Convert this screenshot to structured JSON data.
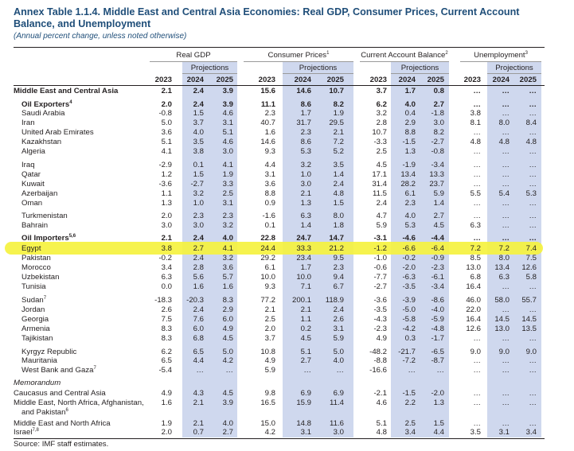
{
  "title": "Annex Table 1.1.4. Middle East and Central Asia Economies: Real GDP, Consumer Prices, Current Account Balance, and Unemployment",
  "subtitle": "(Annual percent change, unless noted otherwise)",
  "groups": [
    {
      "label": "Real GDP",
      "sup": ""
    },
    {
      "label": "Consumer Prices",
      "sup": "1"
    },
    {
      "label": "Current Account Balance",
      "sup": "2"
    },
    {
      "label": "Unemployment",
      "sup": "3"
    }
  ],
  "projections_label": "Projections",
  "years": [
    "2023",
    "2024",
    "2025"
  ],
  "source": "Source: IMF staff estimates.",
  "highlight_color": "#f5f23f",
  "rows": [
    {
      "name": "Middle East and Central Asia",
      "sup": "",
      "style": "bold",
      "indent": 0,
      "v": [
        "2.1",
        "2.4",
        "3.9",
        "15.6",
        "14.6",
        "10.7",
        "3.7",
        "1.7",
        "0.8",
        "…",
        "…",
        "…"
      ]
    },
    {
      "name": "Oil Exporters",
      "sup": "4",
      "style": "bold",
      "indent": 1,
      "v": [
        "2.0",
        "2.4",
        "3.9",
        "11.1",
        "8.6",
        "8.2",
        "6.2",
        "4.0",
        "2.7",
        "…",
        "…",
        "…"
      ]
    },
    {
      "name": "Saudi Arabia",
      "sup": "",
      "style": "",
      "indent": 2,
      "v": [
        "-0.8",
        "1.5",
        "4.6",
        "2.3",
        "1.7",
        "1.9",
        "3.2",
        "0.4",
        "-1.8",
        "3.8",
        "…",
        "…"
      ]
    },
    {
      "name": "Iran",
      "sup": "",
      "style": "",
      "indent": 2,
      "v": [
        "5.0",
        "3.7",
        "3.1",
        "40.7",
        "31.7",
        "29.5",
        "2.8",
        "2.9",
        "3.0",
        "8.1",
        "8.0",
        "8.4"
      ]
    },
    {
      "name": "United Arab Emirates",
      "sup": "",
      "style": "",
      "indent": 2,
      "v": [
        "3.6",
        "4.0",
        "5.1",
        "1.6",
        "2.3",
        "2.1",
        "10.7",
        "8.8",
        "8.2",
        "…",
        "…",
        "…"
      ]
    },
    {
      "name": "Kazakhstan",
      "sup": "",
      "style": "",
      "indent": 2,
      "v": [
        "5.1",
        "3.5",
        "4.6",
        "14.6",
        "8.6",
        "7.2",
        "-3.3",
        "-1.5",
        "-2.7",
        "4.8",
        "4.8",
        "4.8"
      ]
    },
    {
      "name": "Algeria",
      "sup": "",
      "style": "",
      "indent": 2,
      "v": [
        "4.1",
        "3.8",
        "3.0",
        "9.3",
        "5.3",
        "5.2",
        "2.5",
        "1.3",
        "-0.8",
        "…",
        "…",
        "…"
      ]
    },
    {
      "name": "Iraq",
      "sup": "",
      "style": "",
      "indent": 2,
      "v": [
        "-2.9",
        "0.1",
        "4.1",
        "4.4",
        "3.2",
        "3.5",
        "4.5",
        "-1.9",
        "-3.4",
        "…",
        "…",
        "…"
      ]
    },
    {
      "name": "Qatar",
      "sup": "",
      "style": "",
      "indent": 2,
      "v": [
        "1.2",
        "1.5",
        "1.9",
        "3.1",
        "1.0",
        "1.4",
        "17.1",
        "13.4",
        "13.3",
        "…",
        "…",
        "…"
      ]
    },
    {
      "name": "Kuwait",
      "sup": "",
      "style": "",
      "indent": 2,
      "v": [
        "-3.6",
        "-2.7",
        "3.3",
        "3.6",
        "3.0",
        "2.4",
        "31.4",
        "28.2",
        "23.7",
        "…",
        "…",
        "…"
      ]
    },
    {
      "name": "Azerbaijan",
      "sup": "",
      "style": "",
      "indent": 2,
      "v": [
        "1.1",
        "3.2",
        "2.5",
        "8.8",
        "2.1",
        "4.8",
        "11.5",
        "6.1",
        "5.9",
        "5.5",
        "5.4",
        "5.3"
      ]
    },
    {
      "name": "Oman",
      "sup": "",
      "style": "",
      "indent": 2,
      "v": [
        "1.3",
        "1.0",
        "3.1",
        "0.9",
        "1.3",
        "1.5",
        "2.4",
        "2.3",
        "1.4",
        "…",
        "…",
        "…"
      ]
    },
    {
      "name": "Turkmenistan",
      "sup": "",
      "style": "",
      "indent": 2,
      "v": [
        "2.0",
        "2.3",
        "2.3",
        "-1.6",
        "6.3",
        "8.0",
        "4.7",
        "4.0",
        "2.7",
        "…",
        "…",
        "…"
      ]
    },
    {
      "name": "Bahrain",
      "sup": "",
      "style": "",
      "indent": 2,
      "v": [
        "3.0",
        "3.0",
        "3.2",
        "0.1",
        "1.4",
        "1.8",
        "5.9",
        "5.3",
        "4.5",
        "6.3",
        "…",
        "…"
      ]
    },
    {
      "name": "Oil Importers",
      "sup": "5,6",
      "style": "bold",
      "indent": 1,
      "v": [
        "2.1",
        "2.4",
        "4.0",
        "22.8",
        "24.7",
        "14.7",
        "-3.1",
        "-4.6",
        "-4.4",
        "…",
        "…",
        "…"
      ]
    },
    {
      "name": "Egypt",
      "sup": "",
      "style": "",
      "indent": 2,
      "v": [
        "3.8",
        "2.7",
        "4.1",
        "24.4",
        "33.3",
        "21.2",
        "-1.2",
        "-6.6",
        "-6.4",
        "7.2",
        "7.2",
        "7.4"
      ]
    },
    {
      "name": "Pakistan",
      "sup": "",
      "style": "",
      "indent": 2,
      "v": [
        "-0.2",
        "2.4",
        "3.2",
        "29.2",
        "23.4",
        "9.5",
        "-1.0",
        "-0.2",
        "-0.9",
        "8.5",
        "8.0",
        "7.5"
      ]
    },
    {
      "name": "Morocco",
      "sup": "",
      "style": "",
      "indent": 2,
      "v": [
        "3.4",
        "2.8",
        "3.6",
        "6.1",
        "1.7",
        "2.3",
        "-0.6",
        "-2.0",
        "-2.3",
        "13.0",
        "13.4",
        "12.6"
      ]
    },
    {
      "name": "Uzbekistan",
      "sup": "",
      "style": "",
      "indent": 2,
      "v": [
        "6.3",
        "5.6",
        "5.7",
        "10.0",
        "10.0",
        "9.4",
        "-7.7",
        "-6.3",
        "-6.1",
        "6.8",
        "6.3",
        "5.8"
      ]
    },
    {
      "name": "Tunisia",
      "sup": "",
      "style": "",
      "indent": 2,
      "v": [
        "0.0",
        "1.6",
        "1.6",
        "9.3",
        "7.1",
        "6.7",
        "-2.7",
        "-3.5",
        "-3.4",
        "16.4",
        "…",
        "…"
      ]
    },
    {
      "name": "Sudan",
      "sup": "7",
      "style": "",
      "indent": 2,
      "v": [
        "-18.3",
        "-20.3",
        "8.3",
        "77.2",
        "200.1",
        "118.9",
        "-3.6",
        "-3.9",
        "-8.6",
        "46.0",
        "58.0",
        "55.7"
      ]
    },
    {
      "name": "Jordan",
      "sup": "",
      "style": "",
      "indent": 2,
      "v": [
        "2.6",
        "2.4",
        "2.9",
        "2.1",
        "2.1",
        "2.4",
        "-3.5",
        "-5.0",
        "-4.0",
        "22.0",
        "…",
        "…"
      ]
    },
    {
      "name": "Georgia",
      "sup": "",
      "style": "",
      "indent": 2,
      "v": [
        "7.5",
        "7.6",
        "6.0",
        "2.5",
        "1.1",
        "2.6",
        "-4.3",
        "-5.8",
        "-5.9",
        "16.4",
        "14.5",
        "14.5"
      ]
    },
    {
      "name": "Armenia",
      "sup": "",
      "style": "",
      "indent": 2,
      "v": [
        "8.3",
        "6.0",
        "4.9",
        "2.0",
        "0.2",
        "3.1",
        "-2.3",
        "-4.2",
        "-4.8",
        "12.6",
        "13.0",
        "13.5"
      ]
    },
    {
      "name": "Tajikistan",
      "sup": "",
      "style": "",
      "indent": 2,
      "v": [
        "8.3",
        "6.8",
        "4.5",
        "3.7",
        "4.5",
        "5.9",
        "4.9",
        "0.3",
        "-1.7",
        "…",
        "…",
        "…"
      ]
    },
    {
      "name": "Kyrgyz Republic",
      "sup": "",
      "style": "",
      "indent": 2,
      "v": [
        "6.2",
        "6.5",
        "5.0",
        "10.8",
        "5.1",
        "5.0",
        "-48.2",
        "-21.7",
        "-6.5",
        "9.0",
        "9.0",
        "9.0"
      ]
    },
    {
      "name": "Mauritania",
      "sup": "",
      "style": "",
      "indent": 2,
      "v": [
        "6.5",
        "4.4",
        "4.2",
        "4.9",
        "2.7",
        "4.0",
        "-8.8",
        "-7.2",
        "-8.7",
        "…",
        "…",
        "…"
      ]
    },
    {
      "name": "West Bank and Gaza",
      "sup": "7",
      "style": "",
      "indent": 2,
      "v": [
        "-5.4",
        "…",
        "…",
        "5.9",
        "…",
        "…",
        "-16.6",
        "…",
        "…",
        "…",
        "…",
        "…"
      ]
    },
    {
      "name": "Memorandum",
      "sup": "",
      "style": "italic",
      "indent": 0,
      "v": []
    },
    {
      "name": "Caucasus and Central Asia",
      "sup": "",
      "style": "",
      "indent": 0,
      "v": [
        "4.9",
        "4.3",
        "4.5",
        "9.8",
        "6.9",
        "6.9",
        "-2.1",
        "-1.5",
        "-2.0",
        "…",
        "…",
        "…"
      ]
    },
    {
      "name": "Middle East, North Africa, Afghanistan,",
      "sup": "",
      "style": "",
      "indent": 0,
      "v": [
        "1.6",
        "2.1",
        "3.9",
        "16.5",
        "15.9",
        "11.4",
        "4.6",
        "2.2",
        "1.3",
        "…",
        "…",
        "…"
      ]
    },
    {
      "name": "and Pakistan",
      "sup": "6",
      "style": "",
      "indent": 1,
      "v": []
    },
    {
      "name": "Middle East and North Africa",
      "sup": "",
      "style": "",
      "indent": 0,
      "v": [
        "1.9",
        "2.1",
        "4.0",
        "15.0",
        "14.8",
        "11.6",
        "5.1",
        "2.5",
        "1.5",
        "…",
        "…",
        "…"
      ]
    },
    {
      "name": "Israel",
      "sup": "7,8",
      "style": "",
      "indent": 0,
      "v": [
        "2.0",
        "0.7",
        "2.7",
        "4.2",
        "3.1",
        "3.0",
        "4.8",
        "3.4",
        "4.4",
        "3.5",
        "3.1",
        "3.4"
      ]
    }
  ]
}
